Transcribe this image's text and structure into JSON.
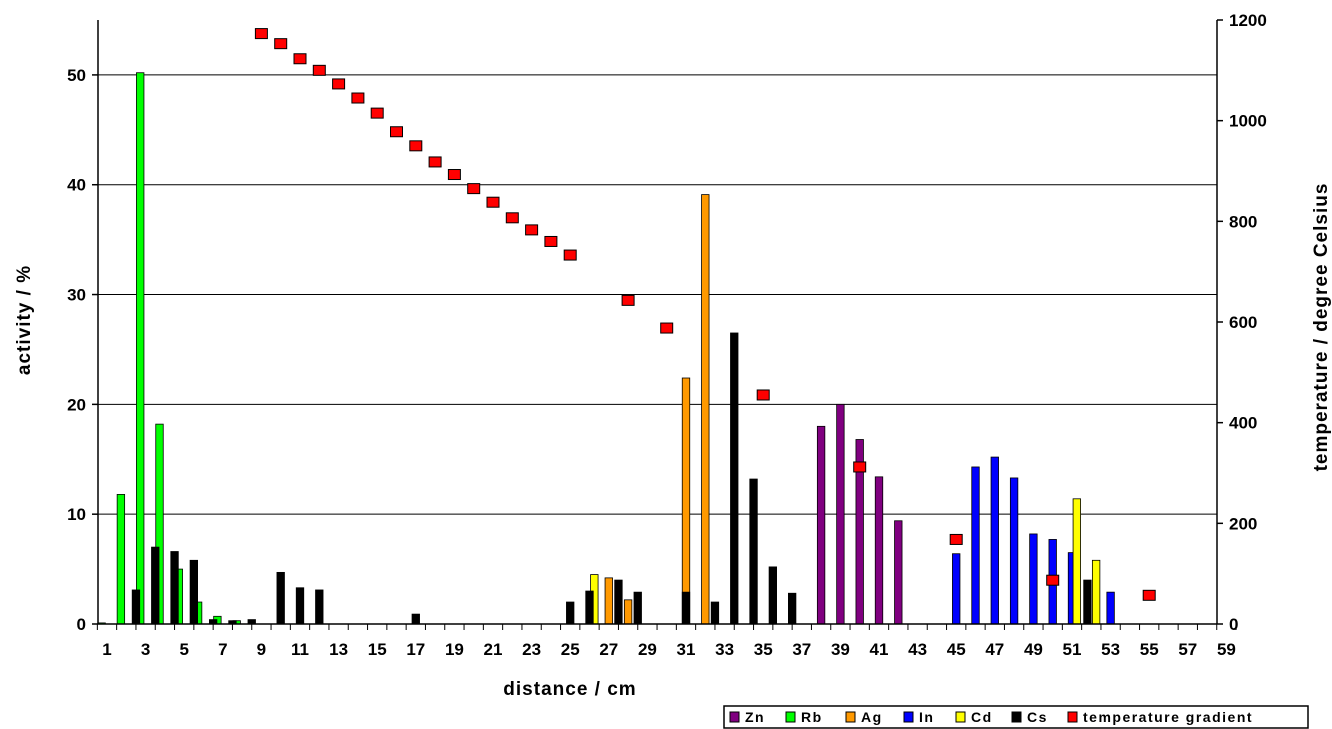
{
  "chart_data": {
    "type": "bar",
    "title": "",
    "xlabel": "distance / cm",
    "ylabel": "activity / %",
    "y2label": "temperature / degree Celsius",
    "xlim": [
      1,
      60
    ],
    "ylim": [
      0,
      55
    ],
    "y2lim": [
      0,
      1200
    ],
    "x_ticks": [
      1,
      3,
      5,
      7,
      9,
      11,
      13,
      15,
      17,
      19,
      21,
      23,
      25,
      27,
      29,
      31,
      33,
      35,
      37,
      39,
      41,
      43,
      45,
      47,
      49,
      51,
      53,
      55,
      57,
      59
    ],
    "y_ticks": [
      0,
      10,
      20,
      30,
      40,
      50
    ],
    "y2_ticks": [
      0,
      200,
      400,
      600,
      800,
      1000,
      1200
    ],
    "grid": "horizontal",
    "legend_position": "bottom-right",
    "series": [
      {
        "name": "Zn",
        "color": "#800080",
        "offset": 0,
        "points": [
          [
            38,
            18
          ],
          [
            39,
            20
          ],
          [
            40,
            16.8
          ],
          [
            41,
            13.4
          ],
          [
            42,
            9.4
          ]
        ]
      },
      {
        "name": "Rb",
        "color": "#00ff00",
        "offset": -0.28,
        "points": [
          [
            1,
            0.1
          ],
          [
            2,
            11.8
          ],
          [
            3,
            50.2
          ],
          [
            4,
            18.2
          ],
          [
            5,
            5
          ],
          [
            6,
            2
          ],
          [
            7,
            0.7
          ],
          [
            8,
            0.3
          ]
        ]
      },
      {
        "name": "Ag",
        "color": "#ff9900",
        "offset": 0,
        "points": [
          [
            27,
            4.2
          ],
          [
            28,
            2.2
          ],
          [
            31,
            22.4
          ],
          [
            32,
            39.1
          ]
        ]
      },
      {
        "name": "In",
        "color": "#0000ff",
        "offset": 0,
        "points": [
          [
            45,
            6.4
          ],
          [
            46,
            14.3
          ],
          [
            47,
            15.2
          ],
          [
            48,
            13.3
          ],
          [
            49,
            8.2
          ],
          [
            50,
            7.7
          ],
          [
            51,
            6.5
          ],
          [
            53,
            2.9
          ]
        ]
      },
      {
        "name": "Cd",
        "color": "#ffff00",
        "offset": 0.25,
        "points": [
          [
            26,
            4.5
          ],
          [
            51,
            11.4
          ],
          [
            52,
            5.8
          ]
        ]
      },
      {
        "name": "Cs",
        "color": "#000000",
        "offset": 0,
        "points": [
          [
            2.5,
            3.1
          ],
          [
            3.5,
            7
          ],
          [
            4.5,
            6.6
          ],
          [
            5.5,
            5.8
          ],
          [
            6.5,
            0.4
          ],
          [
            7.5,
            0.3
          ],
          [
            8.5,
            0.4
          ],
          [
            10,
            4.7
          ],
          [
            11,
            3.3
          ],
          [
            12,
            3.1
          ],
          [
            17,
            0.9
          ],
          [
            25,
            2
          ],
          [
            26,
            3
          ],
          [
            27.5,
            4
          ],
          [
            28.5,
            2.9
          ],
          [
            31,
            2.9
          ],
          [
            32.5,
            2
          ],
          [
            33.5,
            26.5
          ],
          [
            34.5,
            13.2
          ],
          [
            35.5,
            5.2
          ],
          [
            36.5,
            2.8
          ],
          [
            51.8,
            4
          ]
        ]
      }
    ],
    "temperature": {
      "name": "temperature gradient",
      "color": "#ff0000",
      "points": [
        [
          9,
          1173
        ],
        [
          10,
          1153
        ],
        [
          11,
          1123
        ],
        [
          12,
          1100
        ],
        [
          13,
          1073
        ],
        [
          14,
          1045
        ],
        [
          15,
          1015
        ],
        [
          16,
          978
        ],
        [
          17,
          950
        ],
        [
          18,
          918
        ],
        [
          19,
          893
        ],
        [
          20,
          865
        ],
        [
          21,
          838
        ],
        [
          22,
          807
        ],
        [
          23,
          783
        ],
        [
          24,
          760
        ],
        [
          25,
          733
        ],
        [
          28,
          643
        ],
        [
          30,
          588
        ],
        [
          35,
          455
        ],
        [
          40,
          312
        ],
        [
          45,
          168
        ],
        [
          50,
          87
        ],
        [
          55,
          57
        ]
      ]
    },
    "legend": [
      {
        "label": "Zn",
        "color": "#800080"
      },
      {
        "label": "Rb",
        "color": "#00ff00"
      },
      {
        "label": "Ag",
        "color": "#ff9900"
      },
      {
        "label": "In",
        "color": "#0000ff"
      },
      {
        "label": "Cd",
        "color": "#ffff00"
      },
      {
        "label": "Cs",
        "color": "#000000"
      },
      {
        "label": "temperature gradient",
        "color": "#ff0000"
      }
    ]
  }
}
